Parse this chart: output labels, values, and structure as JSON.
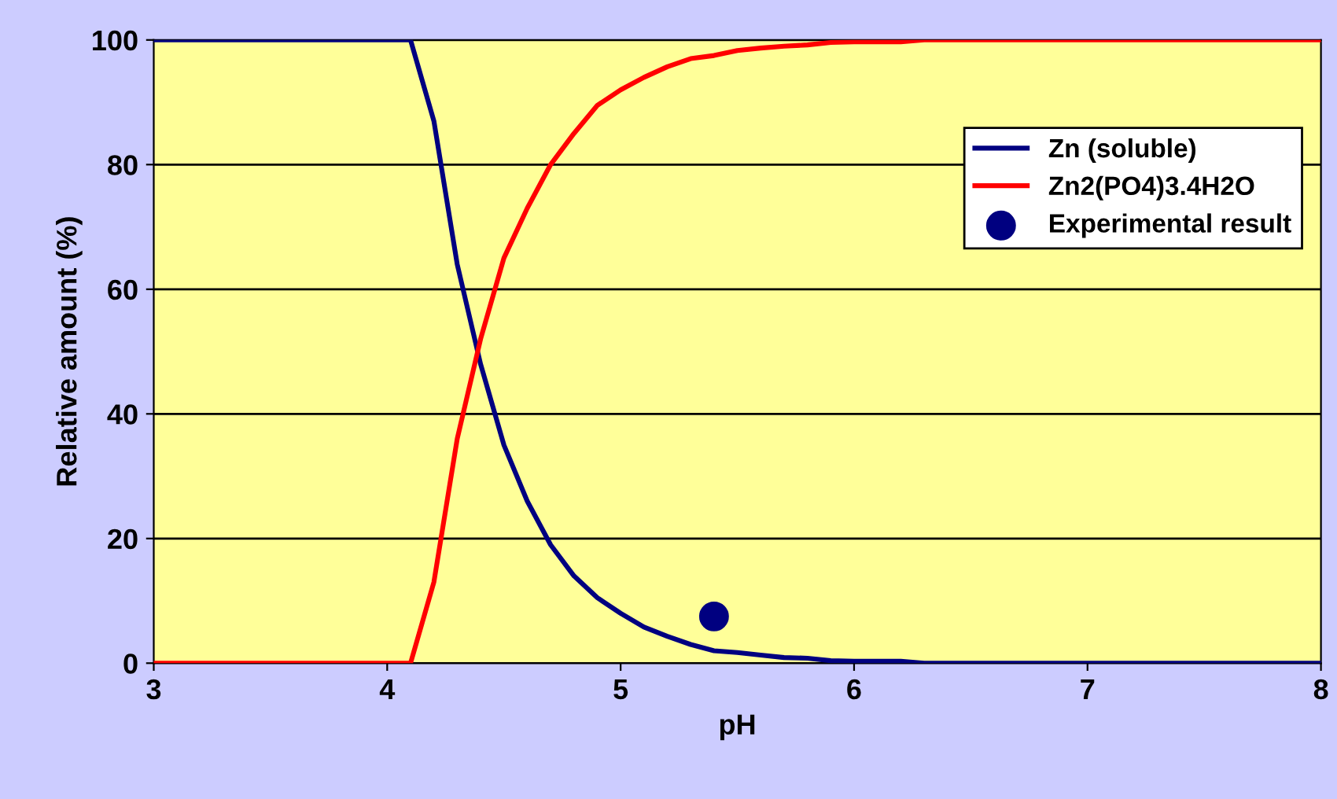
{
  "chart_data": {
    "type": "line",
    "xlabel": "pH",
    "ylabel": "Relative amount (%)",
    "xlim": [
      3,
      8
    ],
    "ylim": [
      0,
      100
    ],
    "xticks": [
      3,
      4,
      5,
      6,
      7,
      8
    ],
    "yticks": [
      0,
      20,
      40,
      60,
      80,
      100
    ],
    "grid": "y",
    "legend": "top right",
    "marker": "none",
    "line_style": "solid",
    "series": [
      {
        "name": "Zn (soluble)",
        "color": "#000080",
        "x": [
          3,
          4.1,
          4.2,
          4.3,
          4.4,
          4.5,
          4.6,
          4.7,
          4.8,
          4.9,
          5.0,
          5.1,
          5.2,
          5.3,
          5.4,
          5.5,
          5.6,
          5.7,
          5.8,
          5.9,
          6.0,
          6.2,
          6.3,
          8
        ],
        "values": [
          100,
          100,
          87,
          64,
          48,
          35,
          26,
          19,
          14,
          10.5,
          8,
          5.8,
          4.3,
          3,
          2,
          1.7,
          1.3,
          0.9,
          0.8,
          0.4,
          0.3,
          0.3,
          0,
          0
        ]
      },
      {
        "name": "Zn2(PO4)3.4H2O",
        "color": "#ff0000",
        "x": [
          3,
          4.1,
          4.2,
          4.3,
          4.4,
          4.5,
          4.6,
          4.7,
          4.8,
          4.9,
          5.0,
          5.1,
          5.2,
          5.3,
          5.4,
          5.5,
          5.6,
          5.7,
          5.8,
          5.9,
          6.0,
          6.2,
          6.3,
          8
        ],
        "values": [
          0,
          0,
          13,
          36,
          52,
          65,
          73,
          80,
          85,
          89.5,
          92,
          94,
          95.7,
          97,
          97.5,
          98.3,
          98.7,
          99,
          99.2,
          99.6,
          99.7,
          99.7,
          100,
          100
        ]
      },
      {
        "name": "Experimental result",
        "type": "scatter",
        "marker": "circle",
        "color": "#000080",
        "x": [
          5.4
        ],
        "values": [
          7.5
        ]
      }
    ]
  }
}
